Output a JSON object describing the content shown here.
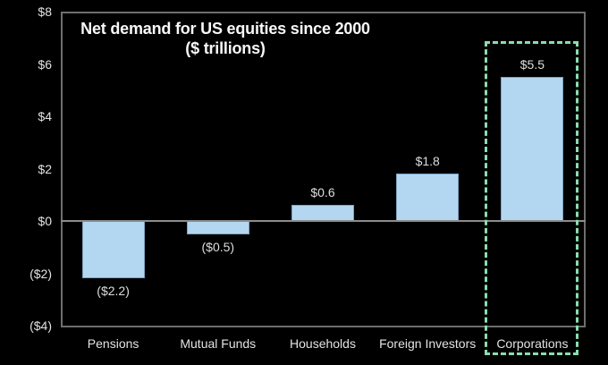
{
  "chart_data": {
    "type": "bar",
    "title": "Net demand for US equities since 2000 ($ trillions)",
    "title_line1": "Net demand for US equities since 2000",
    "title_line2": "($ trillions)",
    "categories": [
      "Pensions",
      "Mutual Funds",
      "Households",
      "Foreign Investors",
      "Corporations"
    ],
    "values": [
      -2.2,
      -0.5,
      0.6,
      1.8,
      5.5
    ],
    "value_labels": [
      "($2.2)",
      "($0.5)",
      "$0.6",
      "$1.8",
      "$5.5"
    ],
    "y_ticks": [
      {
        "label": "$8",
        "value": 8
      },
      {
        "label": "$6",
        "value": 6
      },
      {
        "label": "$4",
        "value": 4
      },
      {
        "label": "$2",
        "value": 2
      },
      {
        "label": "$0",
        "value": 0
      },
      {
        "label": "($2)",
        "value": -2
      },
      {
        "label": "($4)",
        "value": -4
      }
    ],
    "ylim": [
      -4,
      8
    ],
    "xlabel": "",
    "ylabel": "",
    "grid": false,
    "legend": "none",
    "highlighted_category": "Corporations",
    "colors": {
      "background": "#000000",
      "bar_fill": "#b3d7f1",
      "bar_border": "#7fa3c2",
      "highlight_dash": "#8bdcae",
      "plot_border": "#6e6e6e",
      "zero_line": "#8c8c8c",
      "text": "#e2e2e2",
      "title_text": "#f8f8f8"
    }
  }
}
